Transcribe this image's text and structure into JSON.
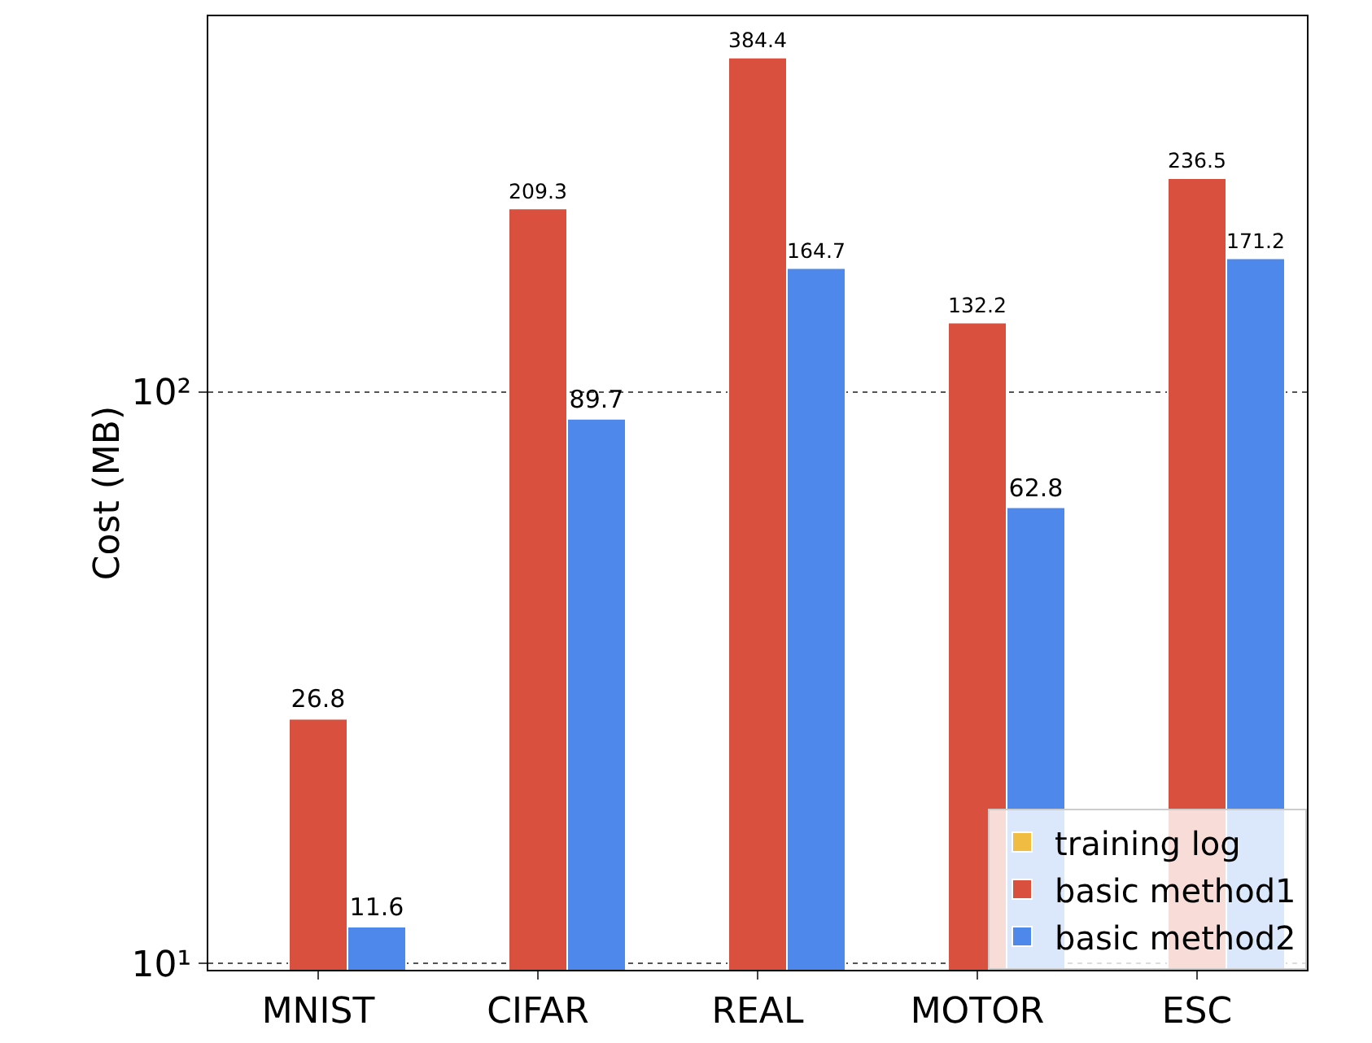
{
  "chart_data": {
    "type": "bar",
    "ylabel": "Cost (MB)",
    "categories": [
      "MNIST",
      "CIFAR",
      "REAL",
      "MOTOR",
      "ESC"
    ],
    "series": [
      {
        "name": "training log",
        "color": "#f0bc42",
        "values": [
          null,
          null,
          null,
          null,
          null
        ]
      },
      {
        "name": "basic method1",
        "color": "#d9503f",
        "values": [
          26.8,
          209.3,
          384.4,
          132.2,
          236.5
        ]
      },
      {
        "name": "basic method2",
        "color": "#4e88ea",
        "values": [
          11.6,
          89.7,
          164.7,
          62.8,
          171.2
        ]
      }
    ],
    "log": "y",
    "ylim": [
      9.75,
      454
    ],
    "yticks": [
      {
        "value": 10,
        "label": "10¹"
      },
      {
        "value": 100,
        "label": "10²"
      }
    ],
    "grid": "y",
    "legend": "bottom right",
    "data_labels": true
  }
}
